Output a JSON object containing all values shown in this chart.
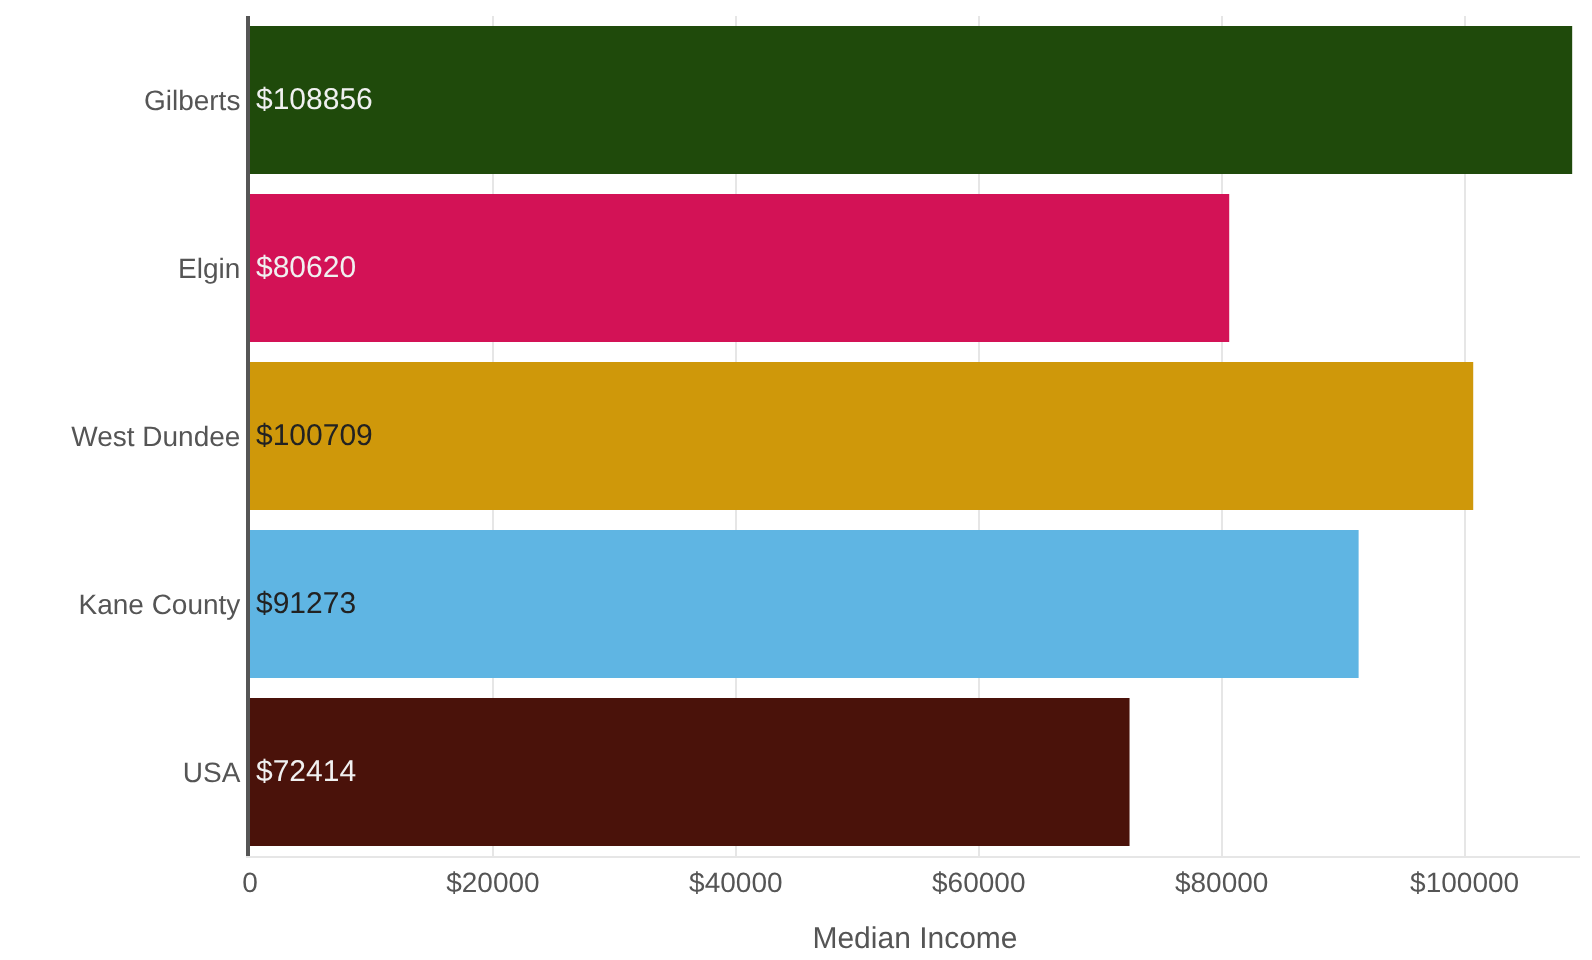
{
  "chart_data": {
    "type": "bar",
    "orientation": "horizontal",
    "xlabel": "Median Income",
    "categories": [
      "Gilberts",
      "Elgin",
      "West Dundee",
      "Kane County",
      "USA"
    ],
    "values": [
      108856,
      80620,
      100709,
      91273,
      72414
    ],
    "value_labels": [
      "$108856",
      "$80620",
      "$100709",
      "$91273",
      "$72414"
    ],
    "colors": [
      "#1f4a0b",
      "#d31256",
      "#cf980a",
      "#5fb5e3",
      "#4a120a"
    ],
    "xlim": [
      0,
      109500
    ],
    "xticks": [
      0,
      {
        "value": 20000,
        "label": "$20000"
      },
      {
        "value": 40000,
        "label": "$40000"
      },
      {
        "value": 60000,
        "label": "$60000"
      },
      {
        "value": 80000,
        "label": "$80000"
      },
      {
        "value": 100000,
        "label": "$100000"
      }
    ],
    "grid": "x"
  }
}
